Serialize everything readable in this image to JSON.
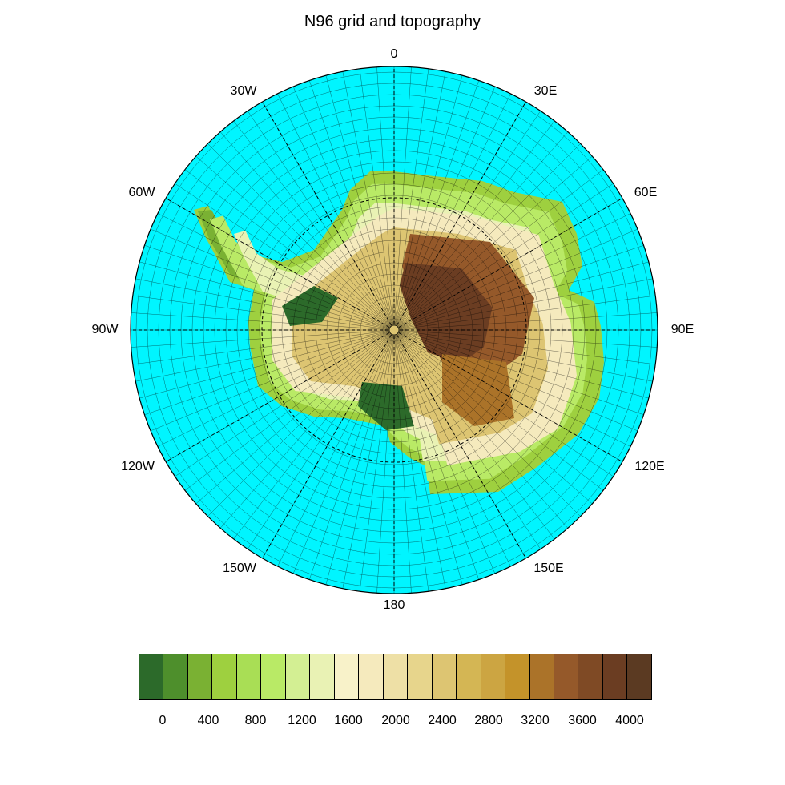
{
  "title": "N96 grid and topography",
  "longitude_labels": [
    {
      "id": "lon-0",
      "text": "0"
    },
    {
      "id": "lon-30e",
      "text": "30E"
    },
    {
      "id": "lon-60e",
      "text": "60E"
    },
    {
      "id": "lon-90e",
      "text": "90E"
    },
    {
      "id": "lon-120e",
      "text": "120E"
    },
    {
      "id": "lon-150e",
      "text": "150E"
    },
    {
      "id": "lon-180",
      "text": "180"
    },
    {
      "id": "lon-150w",
      "text": "150W"
    },
    {
      "id": "lon-120w",
      "text": "120W"
    },
    {
      "id": "lon-90w",
      "text": "90W"
    },
    {
      "id": "lon-60w",
      "text": "60W"
    },
    {
      "id": "lon-30w",
      "text": "30W"
    }
  ],
  "colors": {
    "ocean": "#00f5ff",
    "grid": "#000000",
    "levels": [
      "#2c6a2a",
      "#4e8f2c",
      "#7ab133",
      "#9ed03f",
      "#a9de55",
      "#b9ea66",
      "#d3ef93",
      "#e9f2b4",
      "#f8f2c9",
      "#f5eabd",
      "#eee0a6",
      "#e7d58c",
      "#ddc572",
      "#d4b654",
      "#cca542",
      "#c4932a",
      "#ab7329",
      "#95592a",
      "#7f4a25",
      "#6b3d22",
      "#5b3a22"
    ]
  },
  "colorbar": {
    "tick_labels": [
      "0",
      "400",
      "800",
      "1200",
      "1600",
      "2000",
      "2400",
      "2800",
      "3200",
      "3600",
      "4000"
    ]
  }
}
